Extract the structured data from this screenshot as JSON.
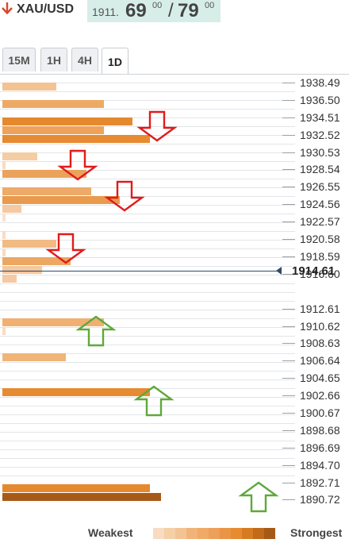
{
  "header": {
    "symbol": "XAU/USD",
    "quote_prefix": "1911.",
    "bid_big": "69",
    "bid_sup": "00",
    "separator": "/",
    "ask_big": "79",
    "ask_sup": "00"
  },
  "tabs": [
    {
      "label": "15M",
      "active": false
    },
    {
      "label": "1H",
      "active": false
    },
    {
      "label": "4H",
      "active": false
    },
    {
      "label": "1D",
      "active": true
    }
  ],
  "price_axis": [
    "1938.49",
    "1936.50",
    "1934.51",
    "1932.52",
    "1930.53",
    "1928.54",
    "1926.55",
    "1924.56",
    "1922.57",
    "1920.58",
    "1918.59",
    "1916.60",
    "1912.61",
    "1910.62",
    "1908.63",
    "1906.64",
    "1904.65",
    "1902.66",
    "1900.67",
    "1898.68",
    "1896.69",
    "1894.70",
    "1892.71",
    "1890.72"
  ],
  "current_price": "1914.61",
  "legend": {
    "weak": "Weakest",
    "strong": "Strongest"
  },
  "chart_data": {
    "type": "bar",
    "levels": [
      {
        "price": 1938.0,
        "strength": 0.34,
        "color": "#f3c394"
      },
      {
        "price": 1936.0,
        "strength": 0.64,
        "color": "#edaa64"
      },
      {
        "price": 1934.0,
        "strength": 0.82,
        "color": "#e5892f"
      },
      {
        "price": 1933.0,
        "strength": 0.64,
        "color": "#eea25a"
      },
      {
        "price": 1932.0,
        "strength": 0.93,
        "color": "#e68b31"
      },
      {
        "price": 1930.0,
        "strength": 0.22,
        "color": "#f5cda5"
      },
      {
        "price": 1929.0,
        "strength": 0.01,
        "color": "#f6dcc0"
      },
      {
        "price": 1928.0,
        "strength": 0.53,
        "color": "#eba25b"
      },
      {
        "price": 1926.0,
        "strength": 0.56,
        "color": "#eeaa68"
      },
      {
        "price": 1925.0,
        "strength": 0.74,
        "color": "#e99a4c"
      },
      {
        "price": 1924.0,
        "strength": 0.12,
        "color": "#f4c9a3"
      },
      {
        "price": 1923.0,
        "strength": 0.01,
        "color": "#f8e2cc"
      },
      {
        "price": 1921.0,
        "strength": 0.01,
        "color": "#f7dcc2"
      },
      {
        "price": 1920.0,
        "strength": 0.34,
        "color": "#f1bb83"
      },
      {
        "price": 1919.0,
        "strength": 0.01,
        "color": "#f7dcc2"
      },
      {
        "price": 1918.0,
        "strength": 0.43,
        "color": "#eca762"
      },
      {
        "price": 1917.0,
        "strength": 0.25,
        "color": "#f4c79d"
      },
      {
        "price": 1916.0,
        "strength": 0.09,
        "color": "#f4c9a3"
      },
      {
        "price": 1911.0,
        "strength": 0.64,
        "color": "#f0b072"
      },
      {
        "price": 1910.0,
        "strength": 0.01,
        "color": "#f7dcc2"
      },
      {
        "price": 1907.0,
        "strength": 0.4,
        "color": "#f1b478"
      },
      {
        "price": 1903.0,
        "strength": 0.93,
        "color": "#e68b31"
      },
      {
        "price": 1892.0,
        "strength": 0.93,
        "color": "#e5892f"
      },
      {
        "price": 1891.0,
        "strength": 1.0,
        "color": "#a75a17"
      }
    ],
    "signals": [
      {
        "type": "down",
        "price": 1933.5
      },
      {
        "type": "down",
        "price": 1929.0
      },
      {
        "type": "down",
        "price": 1925.5
      },
      {
        "type": "down",
        "price": 1919.5
      },
      {
        "type": "up",
        "price": 1910.0
      },
      {
        "type": "up",
        "price": 1902.0
      },
      {
        "type": "up",
        "price": 1891.0
      }
    ]
  },
  "colors": {
    "accent": "#d7eee8",
    "down_arrow": "#e01b1b",
    "up_arrow": "#5fa83a",
    "legend_scale": [
      "#f7dcc2",
      "#f5cfa6",
      "#f3c394",
      "#f1b478",
      "#efaa66",
      "#eda05a",
      "#ea9445",
      "#e68b31",
      "#d67b22",
      "#c06a1a",
      "#a75a17"
    ]
  }
}
